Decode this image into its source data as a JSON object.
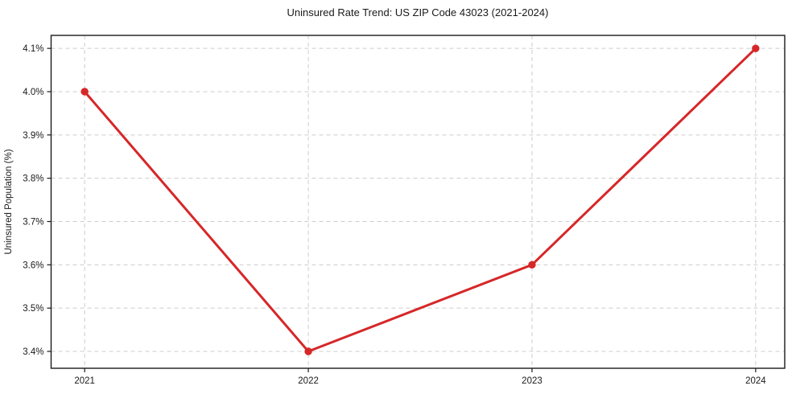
{
  "chart_data": {
    "type": "line",
    "title": "Uninsured Rate Trend: US ZIP Code 43023 (2021-2024)",
    "xlabel": "",
    "ylabel": "Uninsured Population (%)",
    "categories": [
      2021,
      2022,
      2023,
      2024
    ],
    "x_tick_labels": [
      "2021",
      "2022",
      "2023",
      "2024"
    ],
    "series": [
      {
        "name": "uninsured-rate",
        "values": [
          4.0,
          3.4,
          3.6,
          4.1
        ],
        "color": "#d62728",
        "marker": "circle",
        "line_width": 3,
        "marker_radius": 4.7
      }
    ],
    "y_ticks": [
      3.4,
      3.5,
      3.6,
      3.7,
      3.8,
      3.9,
      4.0,
      4.1
    ],
    "y_tick_labels": [
      "3.4%",
      "3.5%",
      "3.6%",
      "3.7%",
      "3.8%",
      "3.9%",
      "4.0%",
      "4.1%"
    ],
    "xlim": [
      2020.85,
      2024.13
    ],
    "ylim": [
      3.361,
      4.13
    ],
    "grid": true,
    "grid_style": "dashed",
    "legend_position": "none",
    "colors": {
      "line": "#d62728",
      "grid": "#cccccc",
      "spine": "#1a1a1a",
      "text": "#1a1a1a",
      "background": "#ffffff"
    }
  }
}
